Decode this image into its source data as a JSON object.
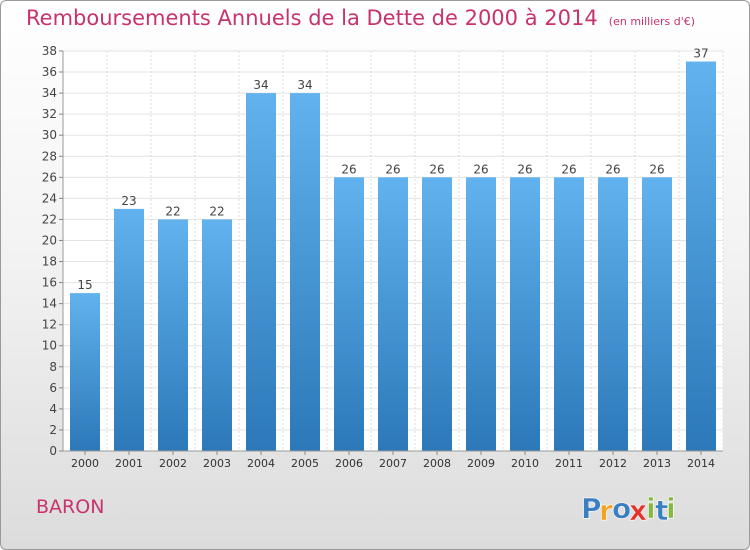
{
  "title": "Remboursements Annuels de la Dette de 2000 à 2014",
  "subtitle": "(en milliers d'€)",
  "location": "BARON",
  "brand": {
    "name": "Proxiti",
    "letters": [
      "P",
      "r",
      "o",
      "x",
      "i",
      "t",
      "i"
    ],
    "colors": [
      "#3a7fc1",
      "#f2a120",
      "#3a7fc1",
      "#e2342b",
      "#86b83c",
      "#3a7fc1",
      "#86b83c"
    ]
  },
  "colors": {
    "bar": "#4d9ee0",
    "bar_top": "#61b2ee",
    "bar_bottom": "#2c78b8",
    "accent": "#c8326e"
  },
  "chart_data": {
    "type": "bar",
    "categories": [
      "2000",
      "2001",
      "2002",
      "2003",
      "2004",
      "2005",
      "2006",
      "2007",
      "2008",
      "2009",
      "2010",
      "2011",
      "2012",
      "2013",
      "2014"
    ],
    "values": [
      15,
      23,
      22,
      22,
      34,
      34,
      26,
      26,
      26,
      26,
      26,
      26,
      26,
      26,
      37
    ],
    "title": "Remboursements Annuels de la Dette de 2000 à 2014",
    "xlabel": "",
    "ylabel": "",
    "ylim": [
      0,
      38
    ],
    "yticks": [
      0,
      2,
      4,
      6,
      8,
      10,
      12,
      14,
      16,
      18,
      20,
      22,
      24,
      26,
      28,
      30,
      32,
      34,
      36,
      38
    ],
    "grid": true,
    "legend": "none"
  }
}
